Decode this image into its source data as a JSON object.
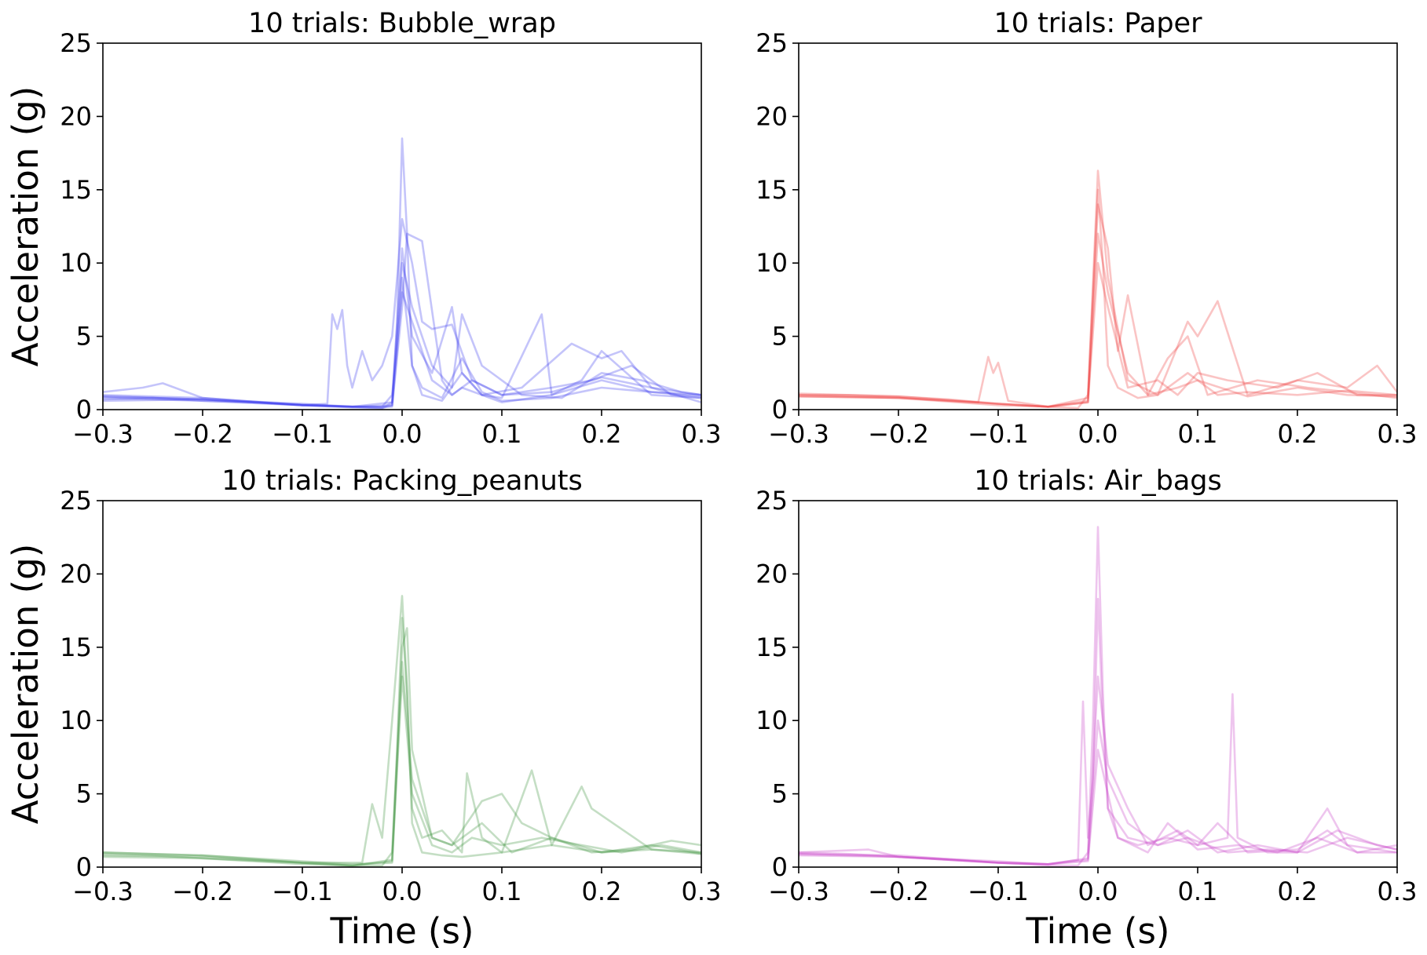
{
  "chart_data": [
    {
      "type": "line",
      "title": "10 trials: Bubble_wrap",
      "xlabel": "",
      "ylabel": "Acceleration (g)",
      "xlim": [
        -0.3,
        0.3
      ],
      "ylim": [
        0,
        25
      ],
      "xticks": [
        "−0.3",
        "−0.2",
        "−0.1",
        "0.0",
        "0.1",
        "0.2",
        "0.3"
      ],
      "yticks": [
        "0",
        "5",
        "10",
        "15",
        "20",
        "25"
      ],
      "color": "#3b3bef",
      "series": [
        {
          "x": [
            -0.3,
            -0.25,
            -0.2,
            -0.15,
            -0.1,
            -0.05,
            -0.02,
            -0.01,
            -0.005,
            0,
            0.005,
            0.01,
            0.02,
            0.04,
            0.06,
            0.08,
            0.1,
            0.15,
            0.2,
            0.25,
            0.3
          ],
          "y": [
            0.9,
            0.8,
            0.7,
            0.5,
            0.3,
            0.15,
            0.1,
            0.3,
            4,
            9,
            6,
            3,
            1.5,
            0.8,
            3.5,
            1.2,
            0.6,
            0.8,
            1.5,
            1.2,
            1
          ]
        },
        {
          "x": [
            -0.3,
            -0.25,
            -0.2,
            -0.15,
            -0.1,
            -0.05,
            -0.02,
            -0.01,
            -0.005,
            0,
            0.005,
            0.01,
            0.02,
            0.04,
            0.06,
            0.08,
            0.1,
            0.15,
            0.2,
            0.25,
            0.3
          ],
          "y": [
            0.7,
            0.8,
            0.6,
            0.5,
            0.35,
            0.2,
            0.1,
            0.5,
            6,
            18.5,
            12,
            3,
            1,
            0.6,
            2.5,
            1,
            0.5,
            1,
            2,
            1.2,
            0.9
          ]
        },
        {
          "x": [
            -0.3,
            -0.2,
            -0.1,
            -0.075,
            -0.07,
            -0.065,
            -0.06,
            -0.055,
            -0.05,
            -0.04,
            -0.03,
            -0.02,
            -0.01,
            0,
            0.01,
            0.02,
            0.03,
            0.05,
            0.07,
            0.1,
            0.15,
            0.2,
            0.25,
            0.3
          ],
          "y": [
            1,
            0.8,
            0.3,
            0.4,
            6.5,
            5.5,
            6.8,
            3,
            1.5,
            4,
            2,
            3,
            5,
            13,
            10,
            6,
            5.5,
            5.8,
            2,
            1,
            1.2,
            2.2,
            1.5,
            1
          ]
        },
        {
          "x": [
            -0.3,
            -0.2,
            -0.1,
            -0.05,
            -0.01,
            0,
            0.005,
            0.02,
            0.04,
            0.05,
            0.06,
            0.08,
            0.1,
            0.14,
            0.15,
            0.18,
            0.2,
            0.25,
            0.3
          ],
          "y": [
            0.6,
            0.7,
            0.3,
            0.2,
            0.2,
            7,
            12,
            11.5,
            2,
            1,
            1.5,
            1,
            0.8,
            6.5,
            1,
            2,
            4,
            1,
            0.8
          ]
        },
        {
          "x": [
            -0.3,
            -0.26,
            -0.24,
            -0.2,
            -0.1,
            -0.05,
            -0.01,
            0,
            0.01,
            0.03,
            0.05,
            0.06,
            0.08,
            0.12,
            0.17,
            0.2,
            0.22,
            0.25,
            0.3
          ],
          "y": [
            1.2,
            1.5,
            1.8,
            0.8,
            0.3,
            0.2,
            0.5,
            11,
            5,
            2.5,
            7,
            2.5,
            1,
            1.5,
            4.5,
            3.5,
            4,
            1.5,
            0.5
          ]
        },
        {
          "x": [
            -0.3,
            -0.2,
            -0.1,
            -0.04,
            -0.02,
            -0.01,
            0,
            0.01,
            0.03,
            0.05,
            0.07,
            0.1,
            0.15,
            0.19,
            0.23,
            0.27,
            0.3
          ],
          "y": [
            0.8,
            0.6,
            0.3,
            0.2,
            0.2,
            1,
            8,
            6,
            2,
            1,
            2,
            1,
            1.5,
            2,
            3,
            1,
            0.8
          ]
        },
        {
          "x": [
            -0.3,
            -0.2,
            -0.1,
            -0.05,
            -0.01,
            0,
            0.01,
            0.03,
            0.05,
            0.06,
            0.08,
            0.12,
            0.16,
            0.2,
            0.24,
            0.28,
            0.3
          ],
          "y": [
            0.9,
            0.7,
            0.4,
            0.2,
            0.3,
            10,
            7,
            3,
            1.5,
            6.5,
            3,
            1,
            0.8,
            2.5,
            2,
            1.2,
            1
          ]
        }
      ]
    },
    {
      "type": "line",
      "title": "10 trials: Paper",
      "xlabel": "",
      "ylabel": "",
      "xlim": [
        -0.3,
        0.3
      ],
      "ylim": [
        0,
        25
      ],
      "xticks": [
        "−0.3",
        "−0.2",
        "−0.1",
        "0.0",
        "0.1",
        "0.2",
        "0.3"
      ],
      "yticks": [
        "0",
        "5",
        "10",
        "15",
        "20",
        "25"
      ],
      "color": "#f03a3a",
      "series": [
        {
          "x": [
            -0.3,
            -0.25,
            -0.2,
            -0.15,
            -0.1,
            -0.05,
            -0.02,
            -0.01,
            -0.005,
            0,
            0.005,
            0.01,
            0.02,
            0.04,
            0.06,
            0.09,
            0.12,
            0.15,
            0.2,
            0.25,
            0.3
          ],
          "y": [
            1,
            1,
            0.9,
            0.7,
            0.4,
            0.2,
            0.1,
            1,
            8,
            15,
            10,
            3,
            1.5,
            0.8,
            1,
            2.5,
            1,
            1.2,
            1,
            1.3,
            1
          ]
        },
        {
          "x": [
            -0.3,
            -0.2,
            -0.12,
            -0.11,
            -0.105,
            -0.1,
            -0.09,
            -0.05,
            -0.01,
            0,
            0.01,
            0.02,
            0.03,
            0.05,
            0.08,
            0.1,
            0.15,
            0.2,
            0.25,
            0.3
          ],
          "y": [
            0.9,
            0.8,
            0.5,
            3.6,
            2.5,
            3.2,
            0.6,
            0.2,
            0.5,
            14,
            11,
            4,
            7.8,
            1,
            1.5,
            2,
            0.9,
            1.5,
            1,
            0.9
          ]
        },
        {
          "x": [
            -0.3,
            -0.2,
            -0.1,
            -0.05,
            -0.01,
            0,
            0.01,
            0.03,
            0.06,
            0.09,
            0.1,
            0.12,
            0.15,
            0.2,
            0.25,
            0.28,
            0.3
          ],
          "y": [
            1.1,
            0.9,
            0.4,
            0.2,
            0.8,
            16.3,
            9,
            2,
            1,
            6,
            5,
            7.4,
            1,
            2,
            1.5,
            3,
            1.2
          ]
        },
        {
          "x": [
            -0.3,
            -0.2,
            -0.1,
            -0.05,
            -0.01,
            0,
            0.01,
            0.03,
            0.05,
            0.07,
            0.09,
            0.11,
            0.16,
            0.21,
            0.25,
            0.3
          ],
          "y": [
            0.9,
            0.8,
            0.3,
            0.2,
            0.6,
            12,
            8,
            2.5,
            1,
            3.5,
            5,
            1,
            2,
            1.5,
            1.2,
            0.8
          ]
        },
        {
          "x": [
            -0.3,
            -0.2,
            -0.1,
            -0.05,
            -0.01,
            0,
            0.01,
            0.03,
            0.06,
            0.08,
            0.1,
            0.13,
            0.18,
            0.22,
            0.26,
            0.3
          ],
          "y": [
            1,
            0.8,
            0.4,
            0.2,
            0.5,
            10,
            7,
            1.5,
            2,
            1,
            2.5,
            2,
            1.5,
            2.5,
            1,
            1
          ]
        }
      ]
    },
    {
      "type": "line",
      "title": "10 trials: Packing_peanuts",
      "xlabel": "Time (s)",
      "ylabel": "Acceleration (g)",
      "xlim": [
        -0.3,
        0.3
      ],
      "ylim": [
        0,
        25
      ],
      "xticks": [
        "−0.3",
        "−0.2",
        "−0.1",
        "0.0",
        "0.1",
        "0.2",
        "0.3"
      ],
      "yticks": [
        "0",
        "5",
        "10",
        "15",
        "20",
        "25"
      ],
      "color": "#3a933a",
      "series": [
        {
          "x": [
            -0.3,
            -0.25,
            -0.2,
            -0.15,
            -0.1,
            -0.05,
            -0.02,
            -0.01,
            -0.005,
            0,
            0.005,
            0.01,
            0.02,
            0.04,
            0.06,
            0.1,
            0.15,
            0.2,
            0.25,
            0.3
          ],
          "y": [
            0.9,
            0.8,
            0.6,
            0.4,
            0.2,
            0.1,
            0.1,
            1,
            8,
            17,
            12,
            3,
            1,
            0.8,
            0.7,
            1,
            1.5,
            1,
            1.2,
            0.9
          ]
        },
        {
          "x": [
            -0.3,
            -0.2,
            -0.1,
            -0.04,
            -0.03,
            -0.02,
            -0.01,
            0,
            0.005,
            0.01,
            0.02,
            0.04,
            0.06,
            0.065,
            0.08,
            0.1,
            0.13,
            0.15,
            0.18,
            0.19,
            0.25,
            0.3
          ],
          "y": [
            1,
            0.8,
            0.3,
            0.3,
            4.3,
            2,
            10,
            18.5,
            12,
            4,
            2,
            2.5,
            1,
            6.4,
            2,
            1,
            6.6,
            1.5,
            5.5,
            4,
            1.2,
            1
          ]
        },
        {
          "x": [
            -0.3,
            -0.2,
            -0.1,
            -0.05,
            -0.01,
            0,
            0.005,
            0.01,
            0.03,
            0.05,
            0.08,
            0.1,
            0.12,
            0.15,
            0.2,
            0.25,
            0.3
          ],
          "y": [
            0.8,
            0.7,
            0.3,
            0.1,
            0.5,
            15,
            16.3,
            8,
            2,
            1.5,
            4.5,
            5,
            3,
            2,
            1,
            1.5,
            0.9
          ]
        },
        {
          "x": [
            -0.3,
            -0.2,
            -0.1,
            -0.05,
            -0.01,
            0,
            0.01,
            0.03,
            0.05,
            0.07,
            0.1,
            0.14,
            0.18,
            0.22,
            0.26,
            0.3
          ],
          "y": [
            1,
            0.8,
            0.4,
            0.2,
            0.3,
            13,
            5,
            1.5,
            1,
            2,
            1.5,
            2,
            1.5,
            1,
            1.5,
            1
          ]
        },
        {
          "x": [
            -0.3,
            -0.2,
            -0.1,
            -0.05,
            -0.01,
            0,
            0.01,
            0.03,
            0.05,
            0.08,
            0.11,
            0.15,
            0.19,
            0.23,
            0.27,
            0.3
          ],
          "y": [
            0.7,
            0.6,
            0.3,
            0.1,
            0.4,
            14,
            6,
            2,
            1.5,
            3,
            1,
            2,
            1,
            1.2,
            1.8,
            1.5
          ]
        }
      ]
    },
    {
      "type": "line",
      "title": "10 trials: Air_bags",
      "xlabel": "Time (s)",
      "ylabel": "",
      "xlim": [
        -0.3,
        0.3
      ],
      "ylim": [
        0,
        25
      ],
      "xticks": [
        "−0.3",
        "−0.2",
        "−0.1",
        "0.0",
        "0.1",
        "0.2",
        "0.3"
      ],
      "yticks": [
        "0",
        "5",
        "10",
        "15",
        "20",
        "25"
      ],
      "color": "#c63ec6",
      "series": [
        {
          "x": [
            -0.3,
            -0.25,
            -0.2,
            -0.15,
            -0.1,
            -0.05,
            -0.02,
            -0.01,
            -0.005,
            0,
            0.005,
            0.01,
            0.02,
            0.04,
            0.07,
            0.1,
            0.13,
            0.135,
            0.14,
            0.17,
            0.2,
            0.23,
            0.25,
            0.3
          ],
          "y": [
            1,
            0.9,
            0.7,
            0.5,
            0.3,
            0.1,
            0.1,
            1,
            10,
            23.2,
            12,
            4,
            2,
            1.5,
            2,
            1.5,
            2,
            11.8,
            2,
            1,
            1,
            4,
            1.5,
            1
          ]
        },
        {
          "x": [
            -0.3,
            -0.2,
            -0.1,
            -0.05,
            -0.02,
            -0.015,
            -0.01,
            -0.005,
            0,
            0.005,
            0.01,
            0.03,
            0.06,
            0.09,
            0.12,
            0.16,
            0.2,
            0.24,
            0.28,
            0.3
          ],
          "y": [
            0.9,
            0.8,
            0.3,
            0.2,
            0.5,
            11.3,
            2,
            6,
            18.3,
            10,
            4,
            2,
            1.5,
            2.5,
            1,
            1.5,
            1,
            2.5,
            1.5,
            1.2
          ]
        },
        {
          "x": [
            -0.3,
            -0.2,
            -0.1,
            -0.05,
            -0.01,
            0,
            0.01,
            0.03,
            0.05,
            0.08,
            0.1,
            0.12,
            0.15,
            0.2,
            0.23,
            0.26,
            0.3
          ],
          "y": [
            0.8,
            0.7,
            0.3,
            0.2,
            0.6,
            13,
            7,
            4,
            1.5,
            2.5,
            1.5,
            3,
            1,
            1.2,
            2.5,
            1,
            1.5
          ]
        },
        {
          "x": [
            -0.3,
            -0.23,
            -0.2,
            -0.1,
            -0.05,
            -0.01,
            0,
            0.01,
            0.03,
            0.06,
            0.09,
            0.13,
            0.17,
            0.21,
            0.25,
            0.3
          ],
          "y": [
            1,
            1.2,
            0.7,
            0.4,
            0.2,
            0.5,
            10,
            6,
            3,
            1.5,
            2,
            1,
            1.2,
            1,
            2,
            1.2
          ]
        },
        {
          "x": [
            -0.3,
            -0.2,
            -0.1,
            -0.05,
            -0.01,
            0,
            0.01,
            0.02,
            0.05,
            0.07,
            0.1,
            0.14,
            0.18,
            0.22,
            0.26,
            0.3
          ],
          "y": [
            0.9,
            0.7,
            0.3,
            0.2,
            0.4,
            8,
            5,
            2,
            1,
            3,
            1.2,
            1.5,
            1,
            2,
            1,
            1
          ]
        }
      ]
    }
  ]
}
